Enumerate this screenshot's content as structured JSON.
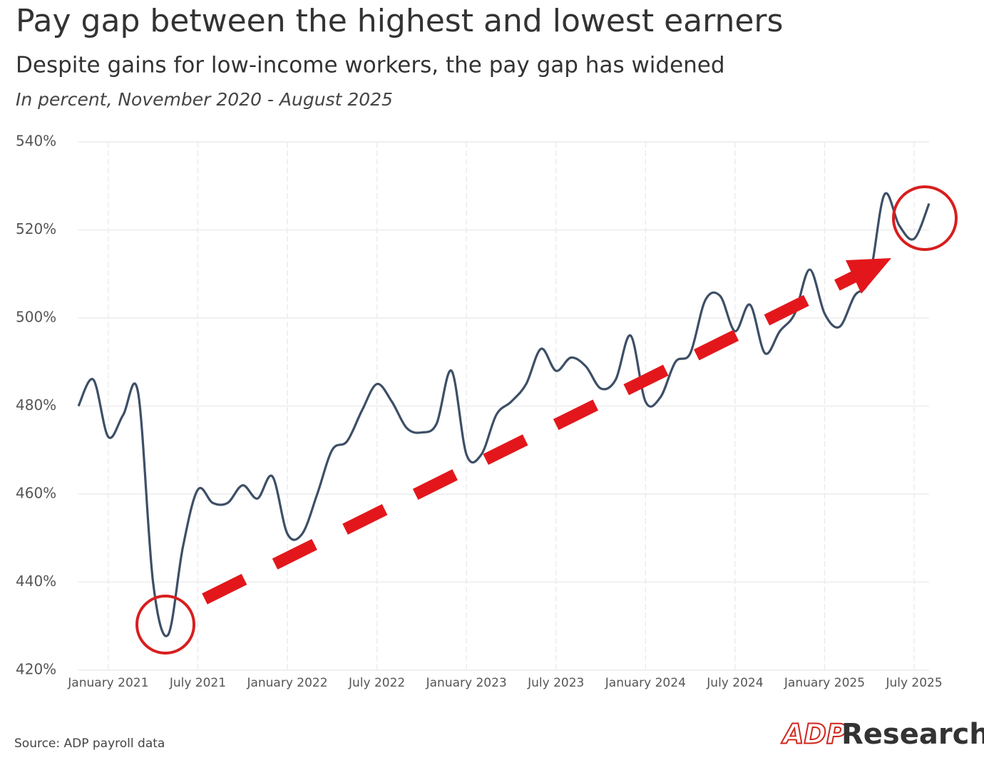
{
  "chart_data": {
    "type": "line",
    "title": "Pay gap between the highest and lowest earners",
    "subtitle": "Despite gains for low-income workers, the pay gap has widened",
    "note": "In percent, November 2020 - August 2025",
    "source": "Source: ADP payroll data",
    "brand": "ADP",
    "brand_suffix": "Research",
    "x": [
      "2020-11",
      "2020-12",
      "2021-01",
      "2021-02",
      "2021-03",
      "2021-04",
      "2021-05",
      "2021-06",
      "2021-07",
      "2021-08",
      "2021-09",
      "2021-10",
      "2021-11",
      "2021-12",
      "2022-01",
      "2022-02",
      "2022-03",
      "2022-04",
      "2022-05",
      "2022-06",
      "2022-07",
      "2022-08",
      "2022-09",
      "2022-10",
      "2022-11",
      "2022-12",
      "2023-01",
      "2023-02",
      "2023-03",
      "2023-04",
      "2023-05",
      "2023-06",
      "2023-07",
      "2023-08",
      "2023-09",
      "2023-10",
      "2023-11",
      "2023-12",
      "2024-01",
      "2024-02",
      "2024-03",
      "2024-04",
      "2024-05",
      "2024-06",
      "2024-07",
      "2024-08",
      "2024-09",
      "2024-10",
      "2024-11",
      "2024-12",
      "2025-01",
      "2025-02",
      "2025-03",
      "2025-04",
      "2025-05",
      "2025-06",
      "2025-07",
      "2025-08"
    ],
    "series": [
      {
        "name": "Pay gap",
        "color": "#3d4f66",
        "values": [
          480,
          486,
          473,
          478,
          483,
          440,
          428,
          448,
          461,
          458,
          458,
          462,
          459,
          464,
          451,
          451,
          460,
          470,
          472,
          479,
          485,
          481,
          475,
          474,
          476,
          488,
          469,
          469,
          478,
          481,
          485,
          493,
          488,
          491,
          489,
          484,
          486,
          496,
          481,
          482,
          490,
          492,
          504,
          505,
          497,
          503,
          492,
          497,
          501,
          511,
          501,
          498,
          505,
          509,
          528,
          521,
          518,
          526
        ]
      }
    ],
    "ylim": [
      420,
      540
    ],
    "yticks": [
      {
        "value": 420,
        "label": "420%"
      },
      {
        "value": 440,
        "label": "440%"
      },
      {
        "value": 460,
        "label": "460%"
      },
      {
        "value": 480,
        "label": "480%"
      },
      {
        "value": 500,
        "label": "500%"
      },
      {
        "value": 520,
        "label": "520%"
      },
      {
        "value": 540,
        "label": "540%"
      }
    ],
    "xticks": [
      {
        "value": "2021-01",
        "label": "January 2021"
      },
      {
        "value": "2021-07",
        "label": "July 2021"
      },
      {
        "value": "2022-01",
        "label": "January 2022"
      },
      {
        "value": "2022-07",
        "label": "July 2022"
      },
      {
        "value": "2023-01",
        "label": "January 2023"
      },
      {
        "value": "2023-07",
        "label": "July 2023"
      },
      {
        "value": "2024-01",
        "label": "January 2024"
      },
      {
        "value": "2024-07",
        "label": "July 2024"
      },
      {
        "value": "2025-01",
        "label": "January 2025"
      },
      {
        "value": "2025-07",
        "label": "July 2025"
      }
    ],
    "grid": true
  }
}
